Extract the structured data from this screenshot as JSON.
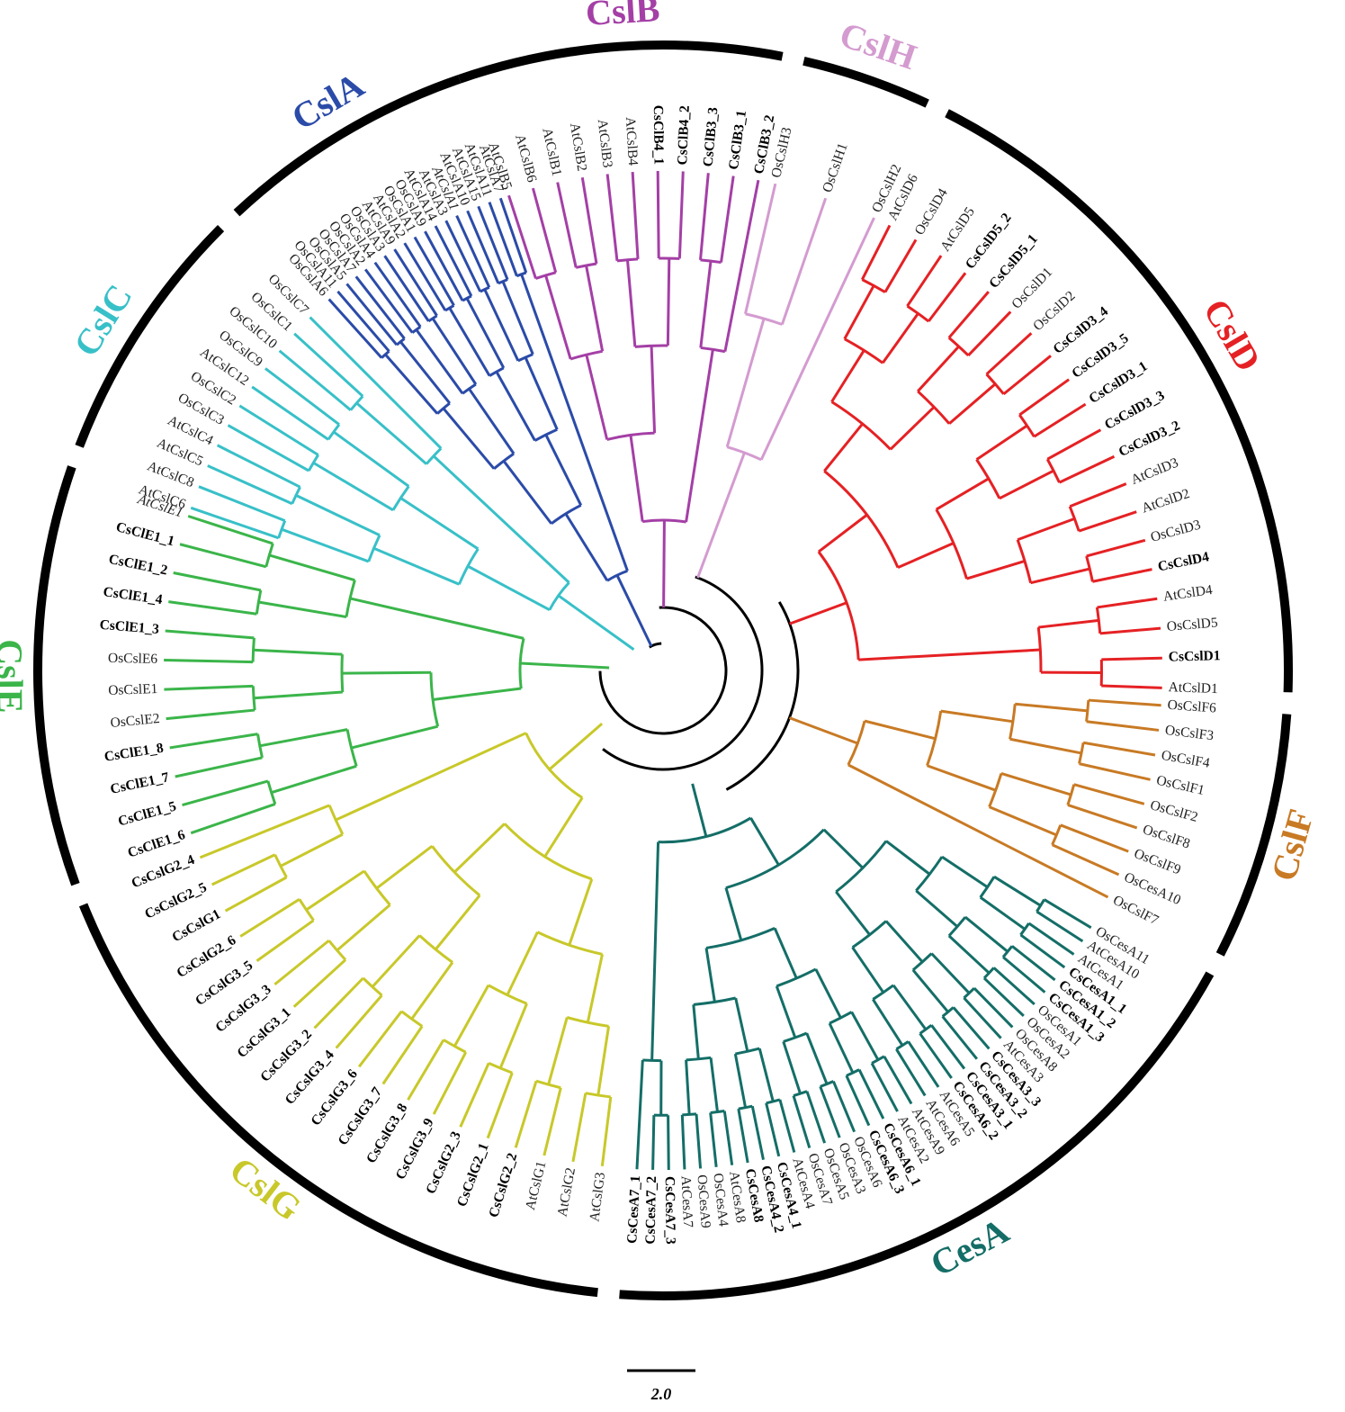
{
  "figure": {
    "scale_bar_label": "2.0",
    "clades": [
      {
        "name": "CslB",
        "color": "#a43fa6",
        "leaves": [
          {
            "label": "AtCslB5",
            "bold": false
          },
          {
            "label": "AtCslB6",
            "bold": false
          },
          {
            "label": "AtCslB1",
            "bold": false
          },
          {
            "label": "AtCslB2",
            "bold": false
          },
          {
            "label": "AtCslB3",
            "bold": false
          },
          {
            "label": "AtCslB4",
            "bold": false
          },
          {
            "label": "CsClB4_1",
            "bold": true
          },
          {
            "label": "CsClB4_2",
            "bold": true
          },
          {
            "label": "CsClB3_3",
            "bold": true
          },
          {
            "label": "CsClB3_1",
            "bold": true
          },
          {
            "label": "CsClB3_2",
            "bold": true
          }
        ]
      },
      {
        "name": "CslH",
        "color": "#d49bd0",
        "leaves": [
          {
            "label": "OsCslH3",
            "bold": false
          },
          {
            "label": "OsCslH1",
            "bold": false
          },
          {
            "label": "OsCslH2",
            "bold": false
          }
        ]
      },
      {
        "name": "CslD",
        "color": "#e52124",
        "leaves": [
          {
            "label": "AtCslD6",
            "bold": false
          },
          {
            "label": "OsCslD4",
            "bold": false
          },
          {
            "label": "AtCslD5",
            "bold": false
          },
          {
            "label": "CsCslD5_2",
            "bold": true
          },
          {
            "label": "CsCslD5_1",
            "bold": true
          },
          {
            "label": "OsCslD1",
            "bold": false
          },
          {
            "label": "OsCslD2",
            "bold": false
          },
          {
            "label": "CsCslD3_4",
            "bold": true
          },
          {
            "label": "CsCslD3_5",
            "bold": true
          },
          {
            "label": "CsCslD3_1",
            "bold": true
          },
          {
            "label": "CsCslD3_3",
            "bold": true
          },
          {
            "label": "CsCslD3_2",
            "bold": true
          },
          {
            "label": "AtCslD3",
            "bold": false
          },
          {
            "label": "AtCslD2",
            "bold": false
          },
          {
            "label": "OsCslD3",
            "bold": false
          },
          {
            "label": "CsCslD4",
            "bold": true
          },
          {
            "label": "AtCslD4",
            "bold": false
          },
          {
            "label": "OsCslD5",
            "bold": false
          },
          {
            "label": "CsCslD1",
            "bold": true
          },
          {
            "label": "AtCslD1",
            "bold": false
          }
        ]
      },
      {
        "name": "CslF",
        "color": "#c87a24",
        "leaves": [
          {
            "label": "OsCslF6",
            "bold": false
          },
          {
            "label": "OsCslF3",
            "bold": false
          },
          {
            "label": "OsCslF4",
            "bold": false
          },
          {
            "label": "OsCslF1",
            "bold": false
          },
          {
            "label": "OsCslF2",
            "bold": false
          },
          {
            "label": "OsCslF8",
            "bold": false
          },
          {
            "label": "OsCslF9",
            "bold": false
          },
          {
            "label": "OsCesA10",
            "bold": false
          },
          {
            "label": "OsCslF7",
            "bold": false
          }
        ]
      },
      {
        "name": "CesA",
        "color": "#146e67",
        "leaves": [
          {
            "label": "OsCesA11",
            "bold": false
          },
          {
            "label": "AtCesA10",
            "bold": false
          },
          {
            "label": "AtCesA1",
            "bold": false
          },
          {
            "label": "CsCesA1_1",
            "bold": true
          },
          {
            "label": "CsCesA1_2",
            "bold": true
          },
          {
            "label": "CsCesA1_3",
            "bold": true
          },
          {
            "label": "OsCesA1",
            "bold": false
          },
          {
            "label": "OsCesA2",
            "bold": false
          },
          {
            "label": "OsCesA8",
            "bold": false
          },
          {
            "label": "AtCesA3",
            "bold": false
          },
          {
            "label": "CsCesA3_3",
            "bold": true
          },
          {
            "label": "CsCesA3_2",
            "bold": true
          },
          {
            "label": "CsCesA3_1",
            "bold": true
          },
          {
            "label": "CsCesA6_2",
            "bold": true
          },
          {
            "label": "AtCesA5",
            "bold": false
          },
          {
            "label": "AtCesA6",
            "bold": false
          },
          {
            "label": "AtCesA9",
            "bold": false
          },
          {
            "label": "AtCesA2",
            "bold": false
          },
          {
            "label": "CsCesA6_1",
            "bold": true
          },
          {
            "label": "CsCesA6_3",
            "bold": true
          },
          {
            "label": "OsCesA6",
            "bold": false
          },
          {
            "label": "OsCesA3",
            "bold": false
          },
          {
            "label": "OsCesA5",
            "bold": false
          },
          {
            "label": "OsCesA7",
            "bold": false
          },
          {
            "label": "AtCesA4",
            "bold": false
          },
          {
            "label": "CsCesA4_1",
            "bold": true
          },
          {
            "label": "CsCesA4_2",
            "bold": true
          },
          {
            "label": "CsCesA8",
            "bold": true
          },
          {
            "label": "AtCesA8",
            "bold": false
          },
          {
            "label": "OsCesA4",
            "bold": false
          },
          {
            "label": "OsCesA9",
            "bold": false
          },
          {
            "label": "AtCesA7",
            "bold": false
          },
          {
            "label": "CsCesA7_3",
            "bold": true
          },
          {
            "label": "CsCesA7_2",
            "bold": true
          },
          {
            "label": "CsCesA7_1",
            "bold": true
          }
        ]
      },
      {
        "name": "CslG",
        "color": "#c8c82a",
        "leaves": [
          {
            "label": "AtCslG3",
            "bold": false
          },
          {
            "label": "AtCslG2",
            "bold": false
          },
          {
            "label": "AtCslG1",
            "bold": false
          },
          {
            "label": "CsCslG2_2",
            "bold": true
          },
          {
            "label": "CsCslG2_1",
            "bold": true
          },
          {
            "label": "CsCslG2_3",
            "bold": true
          },
          {
            "label": "CsCslG3_9",
            "bold": true
          },
          {
            "label": "CsCslG3_8",
            "bold": true
          },
          {
            "label": "CsCslG3_7",
            "bold": true
          },
          {
            "label": "CsCslG3_6",
            "bold": true
          },
          {
            "label": "CsCslG3_4",
            "bold": true
          },
          {
            "label": "CsCslG3_2",
            "bold": true
          },
          {
            "label": "CsCslG3_1",
            "bold": true
          },
          {
            "label": "CsCslG3_3",
            "bold": true
          },
          {
            "label": "CsCslG3_5",
            "bold": true
          },
          {
            "label": "CsCslG2_6",
            "bold": true
          },
          {
            "label": "CsCslG1",
            "bold": true
          },
          {
            "label": "CsCslG2_5",
            "bold": true
          },
          {
            "label": "CsCslG2_4",
            "bold": true
          }
        ]
      },
      {
        "name": "CslE",
        "color": "#3bb54a",
        "leaves": [
          {
            "label": "CsClE1_6",
            "bold": true
          },
          {
            "label": "CsClE1_5",
            "bold": true
          },
          {
            "label": "CsClE1_7",
            "bold": true
          },
          {
            "label": "CsClE1_8",
            "bold": true
          },
          {
            "label": "OsCslE2",
            "bold": false
          },
          {
            "label": "OsCslE1",
            "bold": false
          },
          {
            "label": "OsCslE6",
            "bold": false
          },
          {
            "label": "CsClE1_3",
            "bold": true
          },
          {
            "label": "CsClE1_4",
            "bold": true
          },
          {
            "label": "CsClE1_2",
            "bold": true
          },
          {
            "label": "CsClE1_1",
            "bold": true
          },
          {
            "label": "AtCslE1",
            "bold": false,
            "italic": true
          }
        ]
      },
      {
        "name": "CslC",
        "color": "#38c0c8",
        "leaves": [
          {
            "label": "AtCslC6",
            "bold": false
          },
          {
            "label": "AtCslC8",
            "bold": false
          },
          {
            "label": "AtCslC5",
            "bold": false
          },
          {
            "label": "AtCslC4",
            "bold": false
          },
          {
            "label": "OsCslC3",
            "bold": false
          },
          {
            "label": "OsCslC2",
            "bold": false
          },
          {
            "label": "AtCslC12",
            "bold": false
          },
          {
            "label": "OsCslC9",
            "bold": false
          },
          {
            "label": "OsCslC10",
            "bold": false
          },
          {
            "label": "OsCslC1",
            "bold": false
          },
          {
            "label": "OsCslC7",
            "bold": false
          }
        ]
      },
      {
        "name": "CslA",
        "color": "#2b4ba8",
        "leaves": [
          {
            "label": "OsCslA6",
            "bold": false
          },
          {
            "label": "OsCslA11",
            "bold": false
          },
          {
            "label": "OsCslA5",
            "bold": false
          },
          {
            "label": "OsCslA7",
            "bold": false
          },
          {
            "label": "OsCslA2",
            "bold": false
          },
          {
            "label": "OsCslA4",
            "bold": false
          },
          {
            "label": "OsCslA3",
            "bold": false
          },
          {
            "label": "AtCslA9",
            "bold": false
          },
          {
            "label": "AtCslA2",
            "bold": false
          },
          {
            "label": "OsCslA1",
            "bold": false
          },
          {
            "label": "OsCslA9",
            "bold": false
          },
          {
            "label": "AtCslA14",
            "bold": false
          },
          {
            "label": "AtCslA3",
            "bold": false
          },
          {
            "label": "AtCslA1",
            "bold": false,
            "italic": true
          },
          {
            "label": "AtCslA10",
            "bold": false
          },
          {
            "label": "AtCslA15",
            "bold": false
          },
          {
            "label": "AtCslA11",
            "bold": false
          },
          {
            "label": "AtCslA7",
            "bold": false
          }
        ]
      }
    ]
  }
}
